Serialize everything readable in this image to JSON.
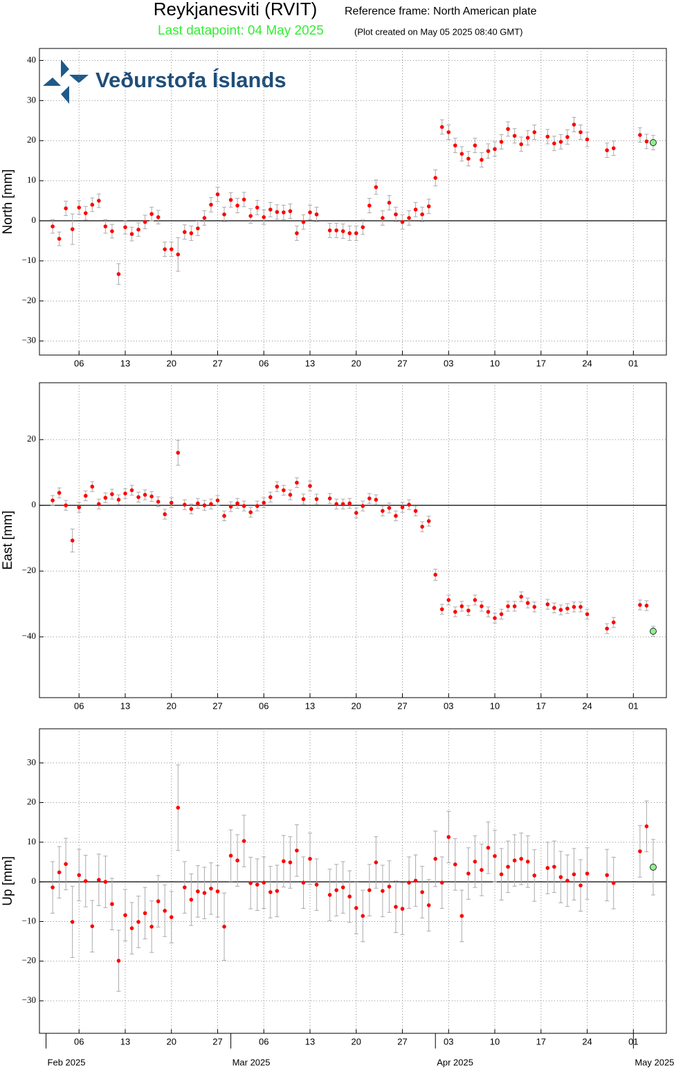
{
  "header": {
    "title": "Reykjanesviti (RVIT)",
    "reference": "Reference frame: North American plate",
    "last_datapoint": "Last datapoint: 04 May 2025",
    "created": "(Plot created on May 05 2025 08:40 GMT)",
    "logo": "Veðurstofa Íslands"
  },
  "chart_data": [
    {
      "type": "scatter",
      "ylabel": "North [mm]",
      "color": "#ff0000",
      "error_color": "#aaaaaa",
      "last_color": "#90ee90",
      "grid": true,
      "zero_line": true,
      "xlim": [
        "2025-01-31",
        "2025-05-06"
      ],
      "ylim": [
        -33.5,
        43
      ],
      "xticks": [
        {
          "value": "2025-02-06",
          "label": "06"
        },
        {
          "value": "2025-02-13",
          "label": "13"
        },
        {
          "value": "2025-02-20",
          "label": "20"
        },
        {
          "value": "2025-02-27",
          "label": "27"
        },
        {
          "value": "2025-03-06",
          "label": "06"
        },
        {
          "value": "2025-03-13",
          "label": "13"
        },
        {
          "value": "2025-03-20",
          "label": "20"
        },
        {
          "value": "2025-03-27",
          "label": "27"
        },
        {
          "value": "2025-04-03",
          "label": "03"
        },
        {
          "value": "2025-04-10",
          "label": "10"
        },
        {
          "value": "2025-04-17",
          "label": "17"
        },
        {
          "value": "2025-04-24",
          "label": "24"
        },
        {
          "value": "2025-05-01",
          "label": "01"
        }
      ],
      "yticks": [
        {
          "value": -30,
          "label": "−30"
        },
        {
          "value": -20,
          "label": "−20"
        },
        {
          "value": -10,
          "label": "−10"
        },
        0,
        10,
        20,
        30,
        40
      ],
      "x": [
        "2025-02-02",
        "2025-02-03",
        "2025-02-04",
        "2025-02-05",
        "2025-02-06",
        "2025-02-07",
        "2025-02-08",
        "2025-02-09",
        "2025-02-10",
        "2025-02-11",
        "2025-02-12",
        "2025-02-13",
        "2025-02-14",
        "2025-02-15",
        "2025-02-16",
        "2025-02-17",
        "2025-02-18",
        "2025-02-19",
        "2025-02-20",
        "2025-02-21",
        "2025-02-22",
        "2025-02-23",
        "2025-02-24",
        "2025-02-25",
        "2025-02-26",
        "2025-02-27",
        "2025-02-28",
        "2025-03-01",
        "2025-03-02",
        "2025-03-03",
        "2025-03-04",
        "2025-03-05",
        "2025-03-06",
        "2025-03-07",
        "2025-03-08",
        "2025-03-09",
        "2025-03-10",
        "2025-03-11",
        "2025-03-12",
        "2025-03-13",
        "2025-03-14",
        "2025-03-16",
        "2025-03-17",
        "2025-03-18",
        "2025-03-19",
        "2025-03-20",
        "2025-03-21",
        "2025-03-22",
        "2025-03-23",
        "2025-03-24",
        "2025-03-25",
        "2025-03-26",
        "2025-03-27",
        "2025-03-28",
        "2025-03-29",
        "2025-03-30",
        "2025-03-31",
        "2025-04-01",
        "2025-04-02",
        "2025-04-03",
        "2025-04-04",
        "2025-04-05",
        "2025-04-06",
        "2025-04-07",
        "2025-04-08",
        "2025-04-09",
        "2025-04-10",
        "2025-04-11",
        "2025-04-12",
        "2025-04-13",
        "2025-04-14",
        "2025-04-15",
        "2025-04-16",
        "2025-04-18",
        "2025-04-19",
        "2025-04-20",
        "2025-04-21",
        "2025-04-22",
        "2025-04-23",
        "2025-04-24",
        "2025-04-27",
        "2025-04-28",
        "2025-05-02",
        "2025-05-03",
        "2025-05-04"
      ],
      "values": [
        -1.4,
        -4.5,
        3.1,
        -2.1,
        3.3,
        1.9,
        4.0,
        5.0,
        -1.4,
        -2.6,
        -13.3,
        -1.6,
        -3.3,
        -2.2,
        -0.3,
        1.7,
        0.9,
        -7.1,
        -7.1,
        -8.4,
        -2.8,
        -3.1,
        -1.9,
        0.7,
        4.0,
        6.6,
        1.6,
        5.2,
        3.8,
        5.3,
        1.2,
        3.3,
        0.9,
        2.8,
        2.2,
        2.1,
        2.4,
        -3.1,
        -0.3,
        2.1,
        1.6,
        -2.4,
        -2.4,
        -2.6,
        -3.1,
        -3.1,
        -1.6,
        3.8,
        8.4,
        0.7,
        4.5,
        1.6,
        -0.3,
        0.7,
        2.8,
        1.6,
        3.6,
        10.7,
        23.4,
        22.1,
        18.8,
        16.7,
        15.5,
        18.8,
        15.2,
        17.4,
        17.9,
        19.7,
        22.9,
        21.2,
        19.1,
        20.7,
        22.1,
        21.0,
        19.3,
        19.7,
        20.9,
        24.0,
        22.1,
        20.3,
        17.6,
        18.1,
        21.4,
        19.8,
        19.5
      ],
      "errors": [
        1.7,
        1.7,
        1.8,
        3.8,
        1.7,
        1.7,
        1.7,
        1.7,
        1.7,
        1.7,
        2.6,
        1.7,
        1.7,
        1.7,
        1.7,
        1.7,
        1.7,
        1.8,
        1.8,
        4.2,
        1.8,
        1.8,
        1.8,
        1.8,
        1.8,
        1.8,
        1.8,
        1.8,
        1.8,
        1.8,
        1.8,
        1.8,
        1.8,
        1.8,
        1.8,
        1.8,
        1.8,
        1.8,
        1.8,
        1.8,
        1.8,
        1.8,
        1.8,
        1.8,
        1.8,
        1.8,
        1.8,
        1.8,
        1.8,
        1.8,
        1.8,
        1.8,
        1.8,
        1.8,
        1.8,
        1.8,
        1.8,
        2.0,
        1.8,
        1.8,
        1.8,
        1.8,
        1.8,
        1.8,
        1.8,
        1.8,
        1.8,
        1.8,
        1.8,
        1.8,
        1.8,
        1.8,
        1.8,
        1.8,
        1.8,
        1.8,
        1.8,
        1.8,
        1.8,
        1.8,
        1.8,
        1.8,
        1.8,
        1.8,
        1.8
      ]
    },
    {
      "type": "scatter",
      "ylabel": "East [mm]",
      "color": "#ff0000",
      "error_color": "#aaaaaa",
      "last_color": "#90ee90",
      "grid": true,
      "zero_line": true,
      "xlim": [
        "2025-01-31",
        "2025-05-06"
      ],
      "ylim": [
        -58.5,
        37.3
      ],
      "xticks": [
        {
          "value": "2025-02-06",
          "label": "06"
        },
        {
          "value": "2025-02-13",
          "label": "13"
        },
        {
          "value": "2025-02-20",
          "label": "20"
        },
        {
          "value": "2025-02-27",
          "label": "27"
        },
        {
          "value": "2025-03-06",
          "label": "06"
        },
        {
          "value": "2025-03-13",
          "label": "13"
        },
        {
          "value": "2025-03-20",
          "label": "20"
        },
        {
          "value": "2025-03-27",
          "label": "27"
        },
        {
          "value": "2025-04-03",
          "label": "03"
        },
        {
          "value": "2025-04-10",
          "label": "10"
        },
        {
          "value": "2025-04-17",
          "label": "17"
        },
        {
          "value": "2025-04-24",
          "label": "24"
        },
        {
          "value": "2025-05-01",
          "label": "01"
        }
      ],
      "yticks": [
        {
          "value": -40,
          "label": "−40"
        },
        {
          "value": -20,
          "label": "−20"
        },
        0,
        20
      ],
      "x": [
        "2025-02-02",
        "2025-02-03",
        "2025-02-04",
        "2025-02-05",
        "2025-02-06",
        "2025-02-07",
        "2025-02-08",
        "2025-02-09",
        "2025-02-10",
        "2025-02-11",
        "2025-02-12",
        "2025-02-13",
        "2025-02-14",
        "2025-02-15",
        "2025-02-16",
        "2025-02-17",
        "2025-02-18",
        "2025-02-19",
        "2025-02-20",
        "2025-02-21",
        "2025-02-22",
        "2025-02-23",
        "2025-02-24",
        "2025-02-25",
        "2025-02-26",
        "2025-02-27",
        "2025-02-28",
        "2025-03-01",
        "2025-03-02",
        "2025-03-03",
        "2025-03-04",
        "2025-03-05",
        "2025-03-06",
        "2025-03-07",
        "2025-03-08",
        "2025-03-09",
        "2025-03-10",
        "2025-03-11",
        "2025-03-12",
        "2025-03-13",
        "2025-03-14",
        "2025-03-16",
        "2025-03-17",
        "2025-03-18",
        "2025-03-19",
        "2025-03-20",
        "2025-03-21",
        "2025-03-22",
        "2025-03-23",
        "2025-03-24",
        "2025-03-25",
        "2025-03-26",
        "2025-03-27",
        "2025-03-28",
        "2025-03-29",
        "2025-03-30",
        "2025-03-31",
        "2025-04-01",
        "2025-04-02",
        "2025-04-03",
        "2025-04-04",
        "2025-04-05",
        "2025-04-06",
        "2025-04-07",
        "2025-04-08",
        "2025-04-09",
        "2025-04-10",
        "2025-04-11",
        "2025-04-12",
        "2025-04-13",
        "2025-04-14",
        "2025-04-15",
        "2025-04-16",
        "2025-04-18",
        "2025-04-19",
        "2025-04-20",
        "2025-04-21",
        "2025-04-22",
        "2025-04-23",
        "2025-04-24",
        "2025-04-27",
        "2025-04-28",
        "2025-05-02",
        "2025-05-03",
        "2025-05-04"
      ],
      "values": [
        1.5,
        3.8,
        0,
        -10.7,
        -0.6,
        2.9,
        5.7,
        0.4,
        2.3,
        3.4,
        1.7,
        3.6,
        4.6,
        2.5,
        3.2,
        2.7,
        1.1,
        -2.7,
        0.8,
        16.0,
        0.2,
        -1.1,
        0.6,
        0,
        0.4,
        1.5,
        -3.2,
        -0.4,
        0.6,
        -0.2,
        -2.1,
        -0.2,
        0.8,
        2.5,
        5.7,
        4.6,
        3.2,
        6.9,
        1.9,
        5.9,
        1.9,
        2.1,
        0.4,
        0.4,
        0.6,
        -2.3,
        -0.2,
        2.1,
        1.7,
        -1.7,
        -0.8,
        -3.2,
        -0.6,
        0.2,
        -1.7,
        -6.5,
        -4.8,
        -21.1,
        -31.6,
        -28.8,
        -32.4,
        -30.7,
        -32.0,
        -28.8,
        -30.7,
        -32.4,
        -34.3,
        -33.1,
        -30.7,
        -30.7,
        -27.8,
        -29.7,
        -30.9,
        -30.1,
        -31.2,
        -31.8,
        -31.4,
        -30.9,
        -30.9,
        -33.1,
        -37.5,
        -35.6,
        -30.3,
        -30.5,
        -38.3
      ],
      "errors": [
        1.5,
        1.5,
        1.5,
        3.5,
        1.5,
        1.5,
        1.5,
        1.5,
        1.5,
        1.5,
        1.5,
        1.5,
        1.5,
        1.5,
        1.5,
        1.5,
        1.5,
        1.5,
        1.5,
        3.8,
        1.5,
        1.5,
        1.5,
        1.5,
        1.5,
        1.5,
        1.5,
        1.5,
        1.5,
        1.5,
        1.5,
        1.5,
        1.5,
        1.5,
        1.5,
        1.5,
        1.5,
        1.5,
        1.5,
        1.5,
        1.5,
        1.5,
        1.5,
        1.5,
        1.5,
        1.5,
        1.5,
        1.5,
        1.5,
        1.5,
        1.5,
        1.5,
        1.5,
        1.5,
        1.5,
        1.5,
        1.5,
        1.7,
        1.5,
        1.5,
        1.5,
        1.5,
        1.5,
        1.5,
        1.5,
        1.5,
        1.5,
        1.5,
        1.5,
        1.5,
        1.5,
        1.5,
        1.5,
        1.5,
        1.5,
        1.5,
        1.5,
        1.5,
        1.5,
        1.5,
        1.5,
        1.5,
        1.5,
        1.5,
        1.5
      ]
    },
    {
      "type": "scatter",
      "ylabel": "Up [mm]",
      "color": "#ff0000",
      "error_color": "#aaaaaa",
      "last_color": "#90ee90",
      "grid": true,
      "zero_line": true,
      "xlim": [
        "2025-01-31",
        "2025-05-06"
      ],
      "ylim": [
        -38.2,
        38.6
      ],
      "xticks": [
        {
          "value": "2025-02-06",
          "label": "06"
        },
        {
          "value": "2025-02-13",
          "label": "13"
        },
        {
          "value": "2025-02-20",
          "label": "20"
        },
        {
          "value": "2025-02-27",
          "label": "27"
        },
        {
          "value": "2025-03-06",
          "label": "06"
        },
        {
          "value": "2025-03-13",
          "label": "13"
        },
        {
          "value": "2025-03-20",
          "label": "20"
        },
        {
          "value": "2025-03-27",
          "label": "27"
        },
        {
          "value": "2025-04-03",
          "label": "03"
        },
        {
          "value": "2025-04-10",
          "label": "10"
        },
        {
          "value": "2025-04-17",
          "label": "17"
        },
        {
          "value": "2025-04-24",
          "label": "24"
        },
        {
          "value": "2025-05-01",
          "label": "01"
        }
      ],
      "month_ticks": [
        {
          "value": "2025-02-01",
          "label": "Feb 2025"
        },
        {
          "value": "2025-03-01",
          "label": "Mar 2025"
        },
        {
          "value": "2025-04-01",
          "label": "Apr 2025"
        },
        {
          "value": "2025-05-01",
          "label": "May 2025"
        }
      ],
      "yticks": [
        {
          "value": -30,
          "label": "−30"
        },
        {
          "value": -20,
          "label": "−20"
        },
        {
          "value": -10,
          "label": "−10"
        },
        0,
        10,
        20,
        30
      ],
      "x": [
        "2025-02-02",
        "2025-02-03",
        "2025-02-04",
        "2025-02-05",
        "2025-02-06",
        "2025-02-07",
        "2025-02-08",
        "2025-02-09",
        "2025-02-10",
        "2025-02-11",
        "2025-02-12",
        "2025-02-13",
        "2025-02-14",
        "2025-02-15",
        "2025-02-16",
        "2025-02-17",
        "2025-02-18",
        "2025-02-19",
        "2025-02-20",
        "2025-02-21",
        "2025-02-22",
        "2025-02-23",
        "2025-02-24",
        "2025-02-25",
        "2025-02-26",
        "2025-02-27",
        "2025-02-28",
        "2025-03-01",
        "2025-03-02",
        "2025-03-03",
        "2025-03-04",
        "2025-03-05",
        "2025-03-06",
        "2025-03-07",
        "2025-03-08",
        "2025-03-09",
        "2025-03-10",
        "2025-03-11",
        "2025-03-12",
        "2025-03-13",
        "2025-03-14",
        "2025-03-16",
        "2025-03-17",
        "2025-03-18",
        "2025-03-19",
        "2025-03-20",
        "2025-03-21",
        "2025-03-22",
        "2025-03-23",
        "2025-03-24",
        "2025-03-25",
        "2025-03-26",
        "2025-03-27",
        "2025-03-28",
        "2025-03-29",
        "2025-03-30",
        "2025-03-31",
        "2025-04-01",
        "2025-04-02",
        "2025-04-03",
        "2025-04-04",
        "2025-04-05",
        "2025-04-06",
        "2025-04-07",
        "2025-04-08",
        "2025-04-09",
        "2025-04-10",
        "2025-04-11",
        "2025-04-12",
        "2025-04-13",
        "2025-04-14",
        "2025-04-15",
        "2025-04-16",
        "2025-04-18",
        "2025-04-19",
        "2025-04-20",
        "2025-04-21",
        "2025-04-22",
        "2025-04-23",
        "2025-04-24",
        "2025-04-27",
        "2025-04-28",
        "2025-05-02",
        "2025-05-03",
        "2025-05-04"
      ],
      "values": [
        -1.4,
        2.4,
        4.5,
        -10.1,
        1.7,
        0.2,
        -11.2,
        0.5,
        0,
        -5.6,
        -19.9,
        -8.4,
        -11.7,
        -10.1,
        -7.9,
        -11.3,
        -4.9,
        -7.3,
        -8.9,
        18.7,
        -1.4,
        -4.5,
        -2.4,
        -2.8,
        -1.7,
        -2.4,
        -11.3,
        6.6,
        5.4,
        10.3,
        -0.3,
        -0.7,
        -0.2,
        -2.6,
        -2.3,
        5.2,
        4.9,
        7.9,
        -0.2,
        5.8,
        -0.7,
        -3.3,
        -2.1,
        -1.4,
        -3.7,
        -6.6,
        -8.6,
        -2.1,
        4.9,
        -2.3,
        -1.2,
        -6.3,
        -6.8,
        -0.2,
        0.3,
        -2.6,
        -5.9,
        5.8,
        -0.2,
        11.3,
        4.4,
        -8.6,
        2.1,
        5.1,
        3.0,
        8.6,
        6.5,
        1.9,
        3.8,
        5.4,
        5.8,
        5.1,
        1.6,
        3.5,
        3.8,
        1.2,
        0.3,
        1.9,
        -0.9,
        2.1,
        1.7,
        -0.3,
        7.7,
        14.0,
        3.7
      ],
      "errors": [
        6.5,
        6.5,
        6.5,
        9.0,
        6.5,
        6.5,
        6.5,
        6.5,
        6.5,
        6.5,
        7.7,
        6.5,
        6.5,
        6.5,
        6.5,
        6.5,
        6.5,
        6.5,
        6.5,
        10.8,
        6.5,
        6.5,
        6.5,
        6.5,
        6.5,
        6.5,
        8.5,
        6.5,
        6.5,
        6.5,
        6.5,
        6.5,
        6.5,
        6.5,
        6.5,
        6.5,
        6.5,
        6.5,
        6.5,
        6.5,
        6.5,
        6.5,
        6.5,
        6.5,
        6.5,
        6.5,
        6.5,
        6.5,
        6.5,
        6.5,
        6.5,
        6.5,
        6.5,
        6.5,
        6.5,
        6.5,
        6.5,
        7.0,
        6.5,
        6.5,
        6.5,
        6.5,
        6.5,
        6.5,
        6.5,
        6.5,
        6.5,
        6.5,
        6.5,
        6.5,
        6.5,
        6.5,
        6.5,
        6.5,
        6.5,
        6.5,
        6.5,
        6.5,
        6.5,
        6.5,
        6.5,
        6.5,
        6.5,
        6.4,
        7.0
      ]
    }
  ]
}
